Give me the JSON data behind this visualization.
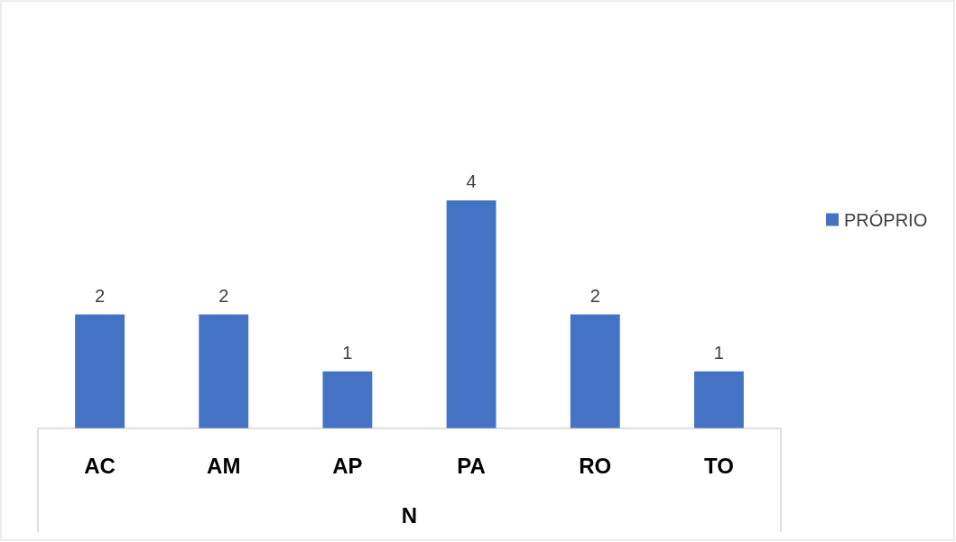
{
  "chart_data": {
    "type": "bar",
    "categories": [
      "AC",
      "AM",
      "AP",
      "PA",
      "RO",
      "TO"
    ],
    "series": [
      {
        "name": "PRÓPRIO",
        "color": "#4472c4",
        "values": [
          2,
          2,
          1,
          4,
          2,
          1
        ]
      }
    ],
    "xlabel": "N",
    "tick_labels": "x",
    "data_labels": true,
    "legend": "right"
  }
}
